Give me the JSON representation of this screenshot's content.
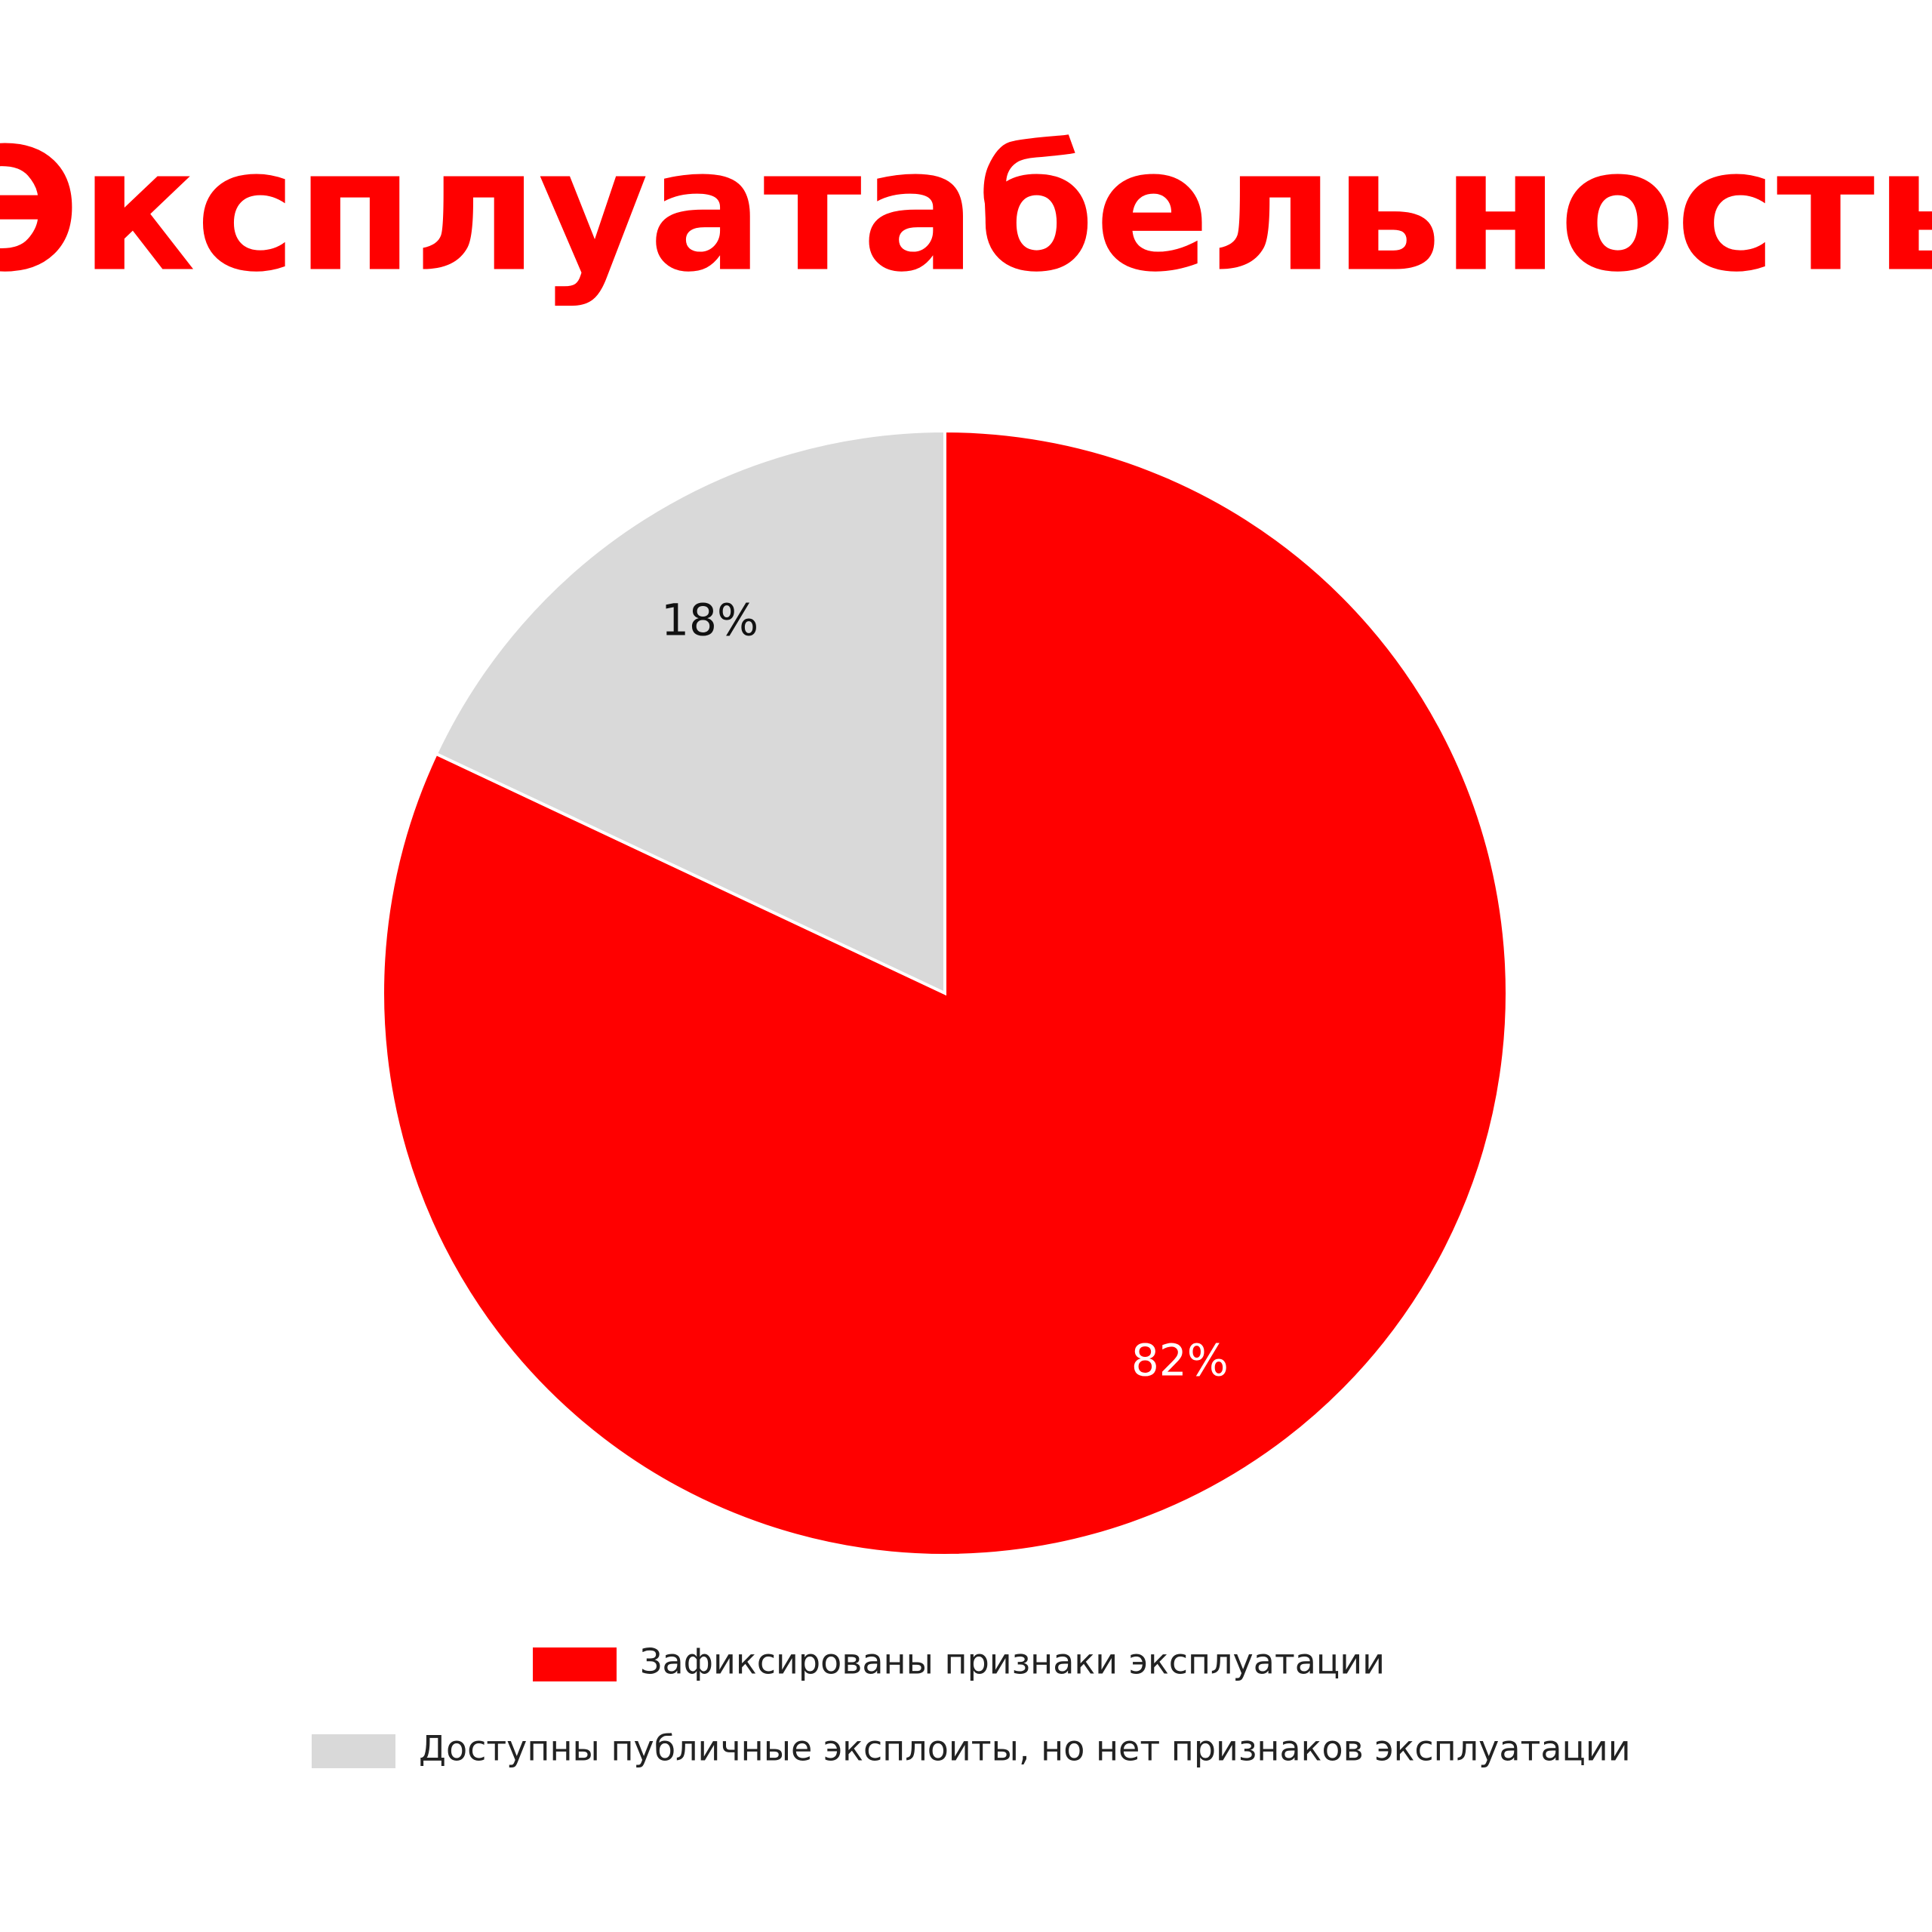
{
  "chart_data": {
    "type": "pie",
    "title": "Эксплуатабельность",
    "categories": [
      "Зафиксированы признаки эксплуатации",
      "Доступны публичные эксплоиты, но нет признаков эксплуатации"
    ],
    "values": [
      82,
      18
    ],
    "value_labels": [
      "82%",
      "18%"
    ],
    "colors": [
      "#ff0000",
      "#d9d9d9"
    ],
    "label_colors": [
      "#ffffff",
      "#111111"
    ]
  }
}
